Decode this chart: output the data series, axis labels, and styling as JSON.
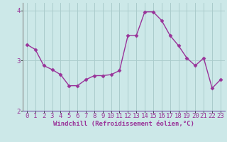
{
  "x": [
    0,
    1,
    2,
    3,
    4,
    5,
    6,
    7,
    8,
    9,
    10,
    11,
    12,
    13,
    14,
    15,
    16,
    17,
    18,
    19,
    20,
    21,
    22,
    23
  ],
  "y": [
    3.32,
    3.22,
    2.9,
    2.82,
    2.72,
    2.5,
    2.5,
    2.62,
    2.7,
    2.7,
    2.72,
    2.8,
    3.5,
    3.5,
    3.97,
    3.97,
    3.8,
    3.5,
    3.3,
    3.05,
    2.9,
    3.05,
    2.45,
    2.62
  ],
  "line_color": "#993399",
  "marker": "D",
  "marker_size": 2.5,
  "bg_color": "#cce8e8",
  "grid_color": "#aacccc",
  "axis_color": "#7755aa",
  "xlabel": "Windchill (Refroidissement éolien,°C)",
  "ylim": [
    2.0,
    4.15
  ],
  "yticks": [
    2,
    3,
    4
  ],
  "xlabel_fontsize": 6.5,
  "tick_fontsize": 6.5,
  "line_width": 1.0
}
